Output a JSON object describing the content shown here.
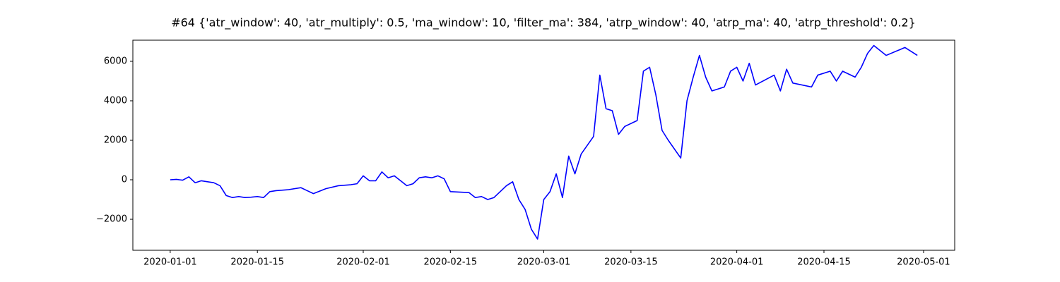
{
  "chart_data": {
    "type": "line",
    "title": "#64 {'atr_window': 40, 'atr_multiply': 0.5, 'ma_window': 10, 'filter_ma': 384, 'atrp_window': 40, 'atrp_ma': 40, 'atrp_threshold': 0.2}",
    "color": "#0000ff",
    "x": [
      "2020-01-01",
      "2020-01-02",
      "2020-01-03",
      "2020-01-04",
      "2020-01-05",
      "2020-01-06",
      "2020-01-07",
      "2020-01-08",
      "2020-01-09",
      "2020-01-10",
      "2020-01-11",
      "2020-01-12",
      "2020-01-13",
      "2020-01-14",
      "2020-01-15",
      "2020-01-16",
      "2020-01-17",
      "2020-01-18",
      "2020-01-20",
      "2020-01-22",
      "2020-01-23",
      "2020-01-24",
      "2020-01-26",
      "2020-01-28",
      "2020-01-30",
      "2020-01-31",
      "2020-02-01",
      "2020-02-02",
      "2020-02-03",
      "2020-02-04",
      "2020-02-05",
      "2020-02-06",
      "2020-02-07",
      "2020-02-08",
      "2020-02-09",
      "2020-02-10",
      "2020-02-11",
      "2020-02-12",
      "2020-02-13",
      "2020-02-14",
      "2020-02-15",
      "2020-02-18",
      "2020-02-19",
      "2020-02-20",
      "2020-02-21",
      "2020-02-22",
      "2020-02-24",
      "2020-02-25",
      "2020-02-26",
      "2020-02-27",
      "2020-02-28",
      "2020-02-29",
      "2020-03-01",
      "2020-03-02",
      "2020-03-03",
      "2020-03-04",
      "2020-03-05",
      "2020-03-06",
      "2020-03-07",
      "2020-03-09",
      "2020-03-10",
      "2020-03-11",
      "2020-03-12",
      "2020-03-13",
      "2020-03-14",
      "2020-03-16",
      "2020-03-17",
      "2020-03-18",
      "2020-03-19",
      "2020-03-20",
      "2020-03-21",
      "2020-03-23",
      "2020-03-24",
      "2020-03-25",
      "2020-03-26",
      "2020-03-27",
      "2020-03-28",
      "2020-03-30",
      "2020-03-31",
      "2020-04-01",
      "2020-04-02",
      "2020-04-03",
      "2020-04-04",
      "2020-04-07",
      "2020-04-08",
      "2020-04-09",
      "2020-04-10",
      "2020-04-13",
      "2020-04-14",
      "2020-04-16",
      "2020-04-17",
      "2020-04-18",
      "2020-04-20",
      "2020-04-21",
      "2020-04-22",
      "2020-04-23",
      "2020-04-25",
      "2020-04-28",
      "2020-04-29",
      "2020-04-30"
    ],
    "values": [
      0,
      20,
      -20,
      150,
      -150,
      -50,
      -100,
      -150,
      -300,
      -800,
      -900,
      -850,
      -900,
      -880,
      -850,
      -900,
      -600,
      -550,
      -500,
      -400,
      -550,
      -700,
      -450,
      -300,
      -250,
      -200,
      200,
      -50,
      -50,
      400,
      100,
      200,
      -50,
      -300,
      -200,
      100,
      150,
      100,
      200,
      50,
      -600,
      -650,
      -900,
      -850,
      -1000,
      -900,
      -300,
      -100,
      -1000,
      -1500,
      -2500,
      -3000,
      -1000,
      -600,
      300,
      -900,
      1200,
      300,
      1300,
      2200,
      5300,
      3600,
      3500,
      2300,
      2700,
      3000,
      5500,
      5700,
      4300,
      2500,
      2000,
      1100,
      4000,
      5200,
      6300,
      5200,
      4500,
      4700,
      5500,
      5700,
      5000,
      5900,
      4800,
      5300,
      4500,
      5600,
      4900,
      4700,
      5300,
      5500,
      5000,
      5500,
      5200,
      5700,
      6400,
      6800,
      6300,
      6700,
      6500,
      6300
    ],
    "xlim": [
      "2019-12-26",
      "2020-05-06"
    ],
    "xticks": [
      "2020-01-01",
      "2020-01-15",
      "2020-02-01",
      "2020-02-15",
      "2020-03-01",
      "2020-03-15",
      "2020-04-01",
      "2020-04-15",
      "2020-05-01"
    ],
    "ylim": [
      -3570,
      7070
    ],
    "yticks": [
      {
        "value": -2000,
        "label": "−2000"
      },
      0,
      2000,
      4000,
      6000
    ]
  }
}
